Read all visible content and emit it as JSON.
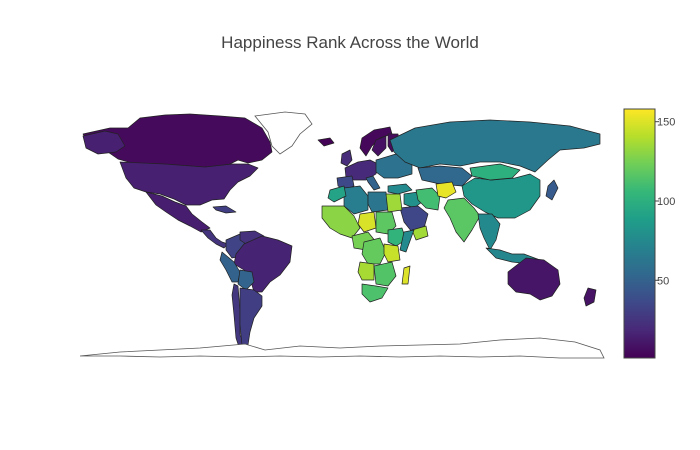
{
  "title": "Happiness Rank Across the World",
  "colorbar": {
    "min": 1,
    "max": 158,
    "ticks": [
      50,
      100,
      150
    ],
    "colorscale": "viridis",
    "stops": [
      "#440154",
      "#482878",
      "#3e4989",
      "#31688e",
      "#26828e",
      "#1f9e89",
      "#35b779",
      "#6ece58",
      "#b5de2b",
      "#fde725"
    ]
  },
  "map_data": {
    "type": "choropleth",
    "projection": "equirectangular",
    "value_label": "Happiness Rank",
    "regions": [
      {
        "name": "Canada",
        "value": 5
      },
      {
        "name": "Alaska",
        "value": 15
      },
      {
        "name": "United States",
        "value": 15
      },
      {
        "name": "Mexico",
        "value": 14
      },
      {
        "name": "Central America",
        "value": 25
      },
      {
        "name": "Cuba",
        "value": 30
      },
      {
        "name": "Colombia",
        "value": 33
      },
      {
        "name": "Venezuela",
        "value": 23
      },
      {
        "name": "Brazil",
        "value": 16
      },
      {
        "name": "Peru",
        "value": 50
      },
      {
        "name": "Bolivia",
        "value": 51
      },
      {
        "name": "Chile",
        "value": 27
      },
      {
        "name": "Argentina",
        "value": 30
      },
      {
        "name": "Iceland",
        "value": 2
      },
      {
        "name": "Greenland",
        "value": null
      },
      {
        "name": "Norway",
        "value": 4
      },
      {
        "name": "Sweden",
        "value": 8
      },
      {
        "name": "Finland",
        "value": 6
      },
      {
        "name": "United Kingdom",
        "value": 21
      },
      {
        "name": "Western Europe",
        "value": 20
      },
      {
        "name": "Spain",
        "value": 36
      },
      {
        "name": "Italy",
        "value": 50
      },
      {
        "name": "Eastern Europe",
        "value": 60
      },
      {
        "name": "Russia",
        "value": 64
      },
      {
        "name": "Kazakhstan",
        "value": 54
      },
      {
        "name": "Turkey",
        "value": 76
      },
      {
        "name": "Middle East",
        "value": 80
      },
      {
        "name": "Saudi Arabia",
        "value": 35
      },
      {
        "name": "Yemen",
        "value": 136
      },
      {
        "name": "Iran",
        "value": 110
      },
      {
        "name": "Afghanistan",
        "value": 153
      },
      {
        "name": "China",
        "value": 84
      },
      {
        "name": "Mongolia",
        "value": 100
      },
      {
        "name": "Japan",
        "value": 46
      },
      {
        "name": "India",
        "value": 117
      },
      {
        "name": "Southeast Asia",
        "value": 75
      },
      {
        "name": "Indonesia",
        "value": 74
      },
      {
        "name": "Australia",
        "value": 10
      },
      {
        "name": "New Zealand",
        "value": 9
      },
      {
        "name": "Algeria",
        "value": 68
      },
      {
        "name": "Libya",
        "value": 63
      },
      {
        "name": "Egypt",
        "value": 135
      },
      {
        "name": "Morocco",
        "value": 92
      },
      {
        "name": "West Africa",
        "value": 130
      },
      {
        "name": "Chad",
        "value": 149
      },
      {
        "name": "Sudan",
        "value": 118
      },
      {
        "name": "Ethiopia",
        "value": 103
      },
      {
        "name": "Somalia",
        "value": 76
      },
      {
        "name": "Central Africa",
        "value": 125
      },
      {
        "name": "DR Congo",
        "value": 120
      },
      {
        "name": "East Africa",
        "value": 145
      },
      {
        "name": "Angola",
        "value": 137
      },
      {
        "name": "Southern Africa",
        "value": 115
      },
      {
        "name": "South Africa",
        "value": 113
      },
      {
        "name": "Madagascar",
        "value": 150
      }
    ]
  }
}
